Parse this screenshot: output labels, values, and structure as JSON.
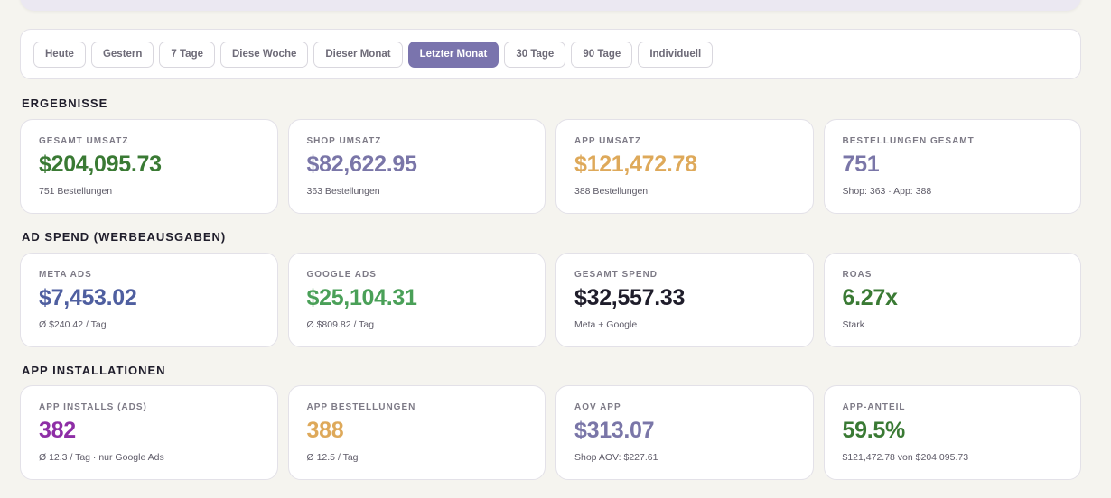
{
  "colors": {
    "green": "#3a7a34",
    "purple_gray": "#7a76a8",
    "gold": "#dea95a",
    "blue": "#4f5fa0",
    "bright_green": "#4aa058",
    "dark": "#1f1d2b",
    "magenta": "#8e2ea6",
    "active_chip": "#7a74ad"
  },
  "filters": {
    "active_index": 5,
    "items": [
      "Heute",
      "Gestern",
      "7 Tage",
      "Diese Woche",
      "Dieser Monat",
      "Letzter Monat",
      "30 Tage",
      "90 Tage",
      "Individuell"
    ]
  },
  "sections": [
    {
      "title": "ERGEBNISSE",
      "cards": [
        {
          "label": "GESAMT UMSATZ",
          "value": "$204,095.73",
          "sub": "751 Bestellungen",
          "color": "#3a7a34"
        },
        {
          "label": "SHOP UMSATZ",
          "value": "$82,622.95",
          "sub": "363 Bestellungen",
          "color": "#7a76a8"
        },
        {
          "label": "APP UMSATZ",
          "value": "$121,472.78",
          "sub": "388 Bestellungen",
          "color": "#dea95a"
        },
        {
          "label": "BESTELLUNGEN GESAMT",
          "value": "751",
          "sub": "Shop: 363 · App: 388",
          "color": "#7a76a8"
        }
      ]
    },
    {
      "title": "AD SPEND (WERBEAUSGABEN)",
      "cards": [
        {
          "label": "META ADS",
          "value": "$7,453.02",
          "sub": "Ø $240.42 / Tag",
          "color": "#4f5fa0"
        },
        {
          "label": "GOOGLE ADS",
          "value": "$25,104.31",
          "sub": "Ø $809.82 / Tag",
          "color": "#4aa058"
        },
        {
          "label": "GESAMT SPEND",
          "value": "$32,557.33",
          "sub": "Meta + Google",
          "color": "#1f1d2b"
        },
        {
          "label": "ROAS",
          "value": "6.27x",
          "sub": "Stark",
          "color": "#3a7a34"
        }
      ]
    },
    {
      "title": "APP INSTALLATIONEN",
      "cards": [
        {
          "label": "APP INSTALLS (ADS)",
          "value": "382",
          "sub": "Ø 12.3 / Tag · nur Google Ads",
          "color": "#8e2ea6"
        },
        {
          "label": "APP BESTELLUNGEN",
          "value": "388",
          "sub": "Ø 12.5 / Tag",
          "color": "#dea95a"
        },
        {
          "label": "AOV APP",
          "value": "$313.07",
          "sub": "Shop AOV: $227.61",
          "color": "#7a76a8"
        },
        {
          "label": "APP-ANTEIL",
          "value": "59.5%",
          "sub": "$121,472.78 von $204,095.73",
          "color": "#3a7a34"
        }
      ]
    }
  ]
}
